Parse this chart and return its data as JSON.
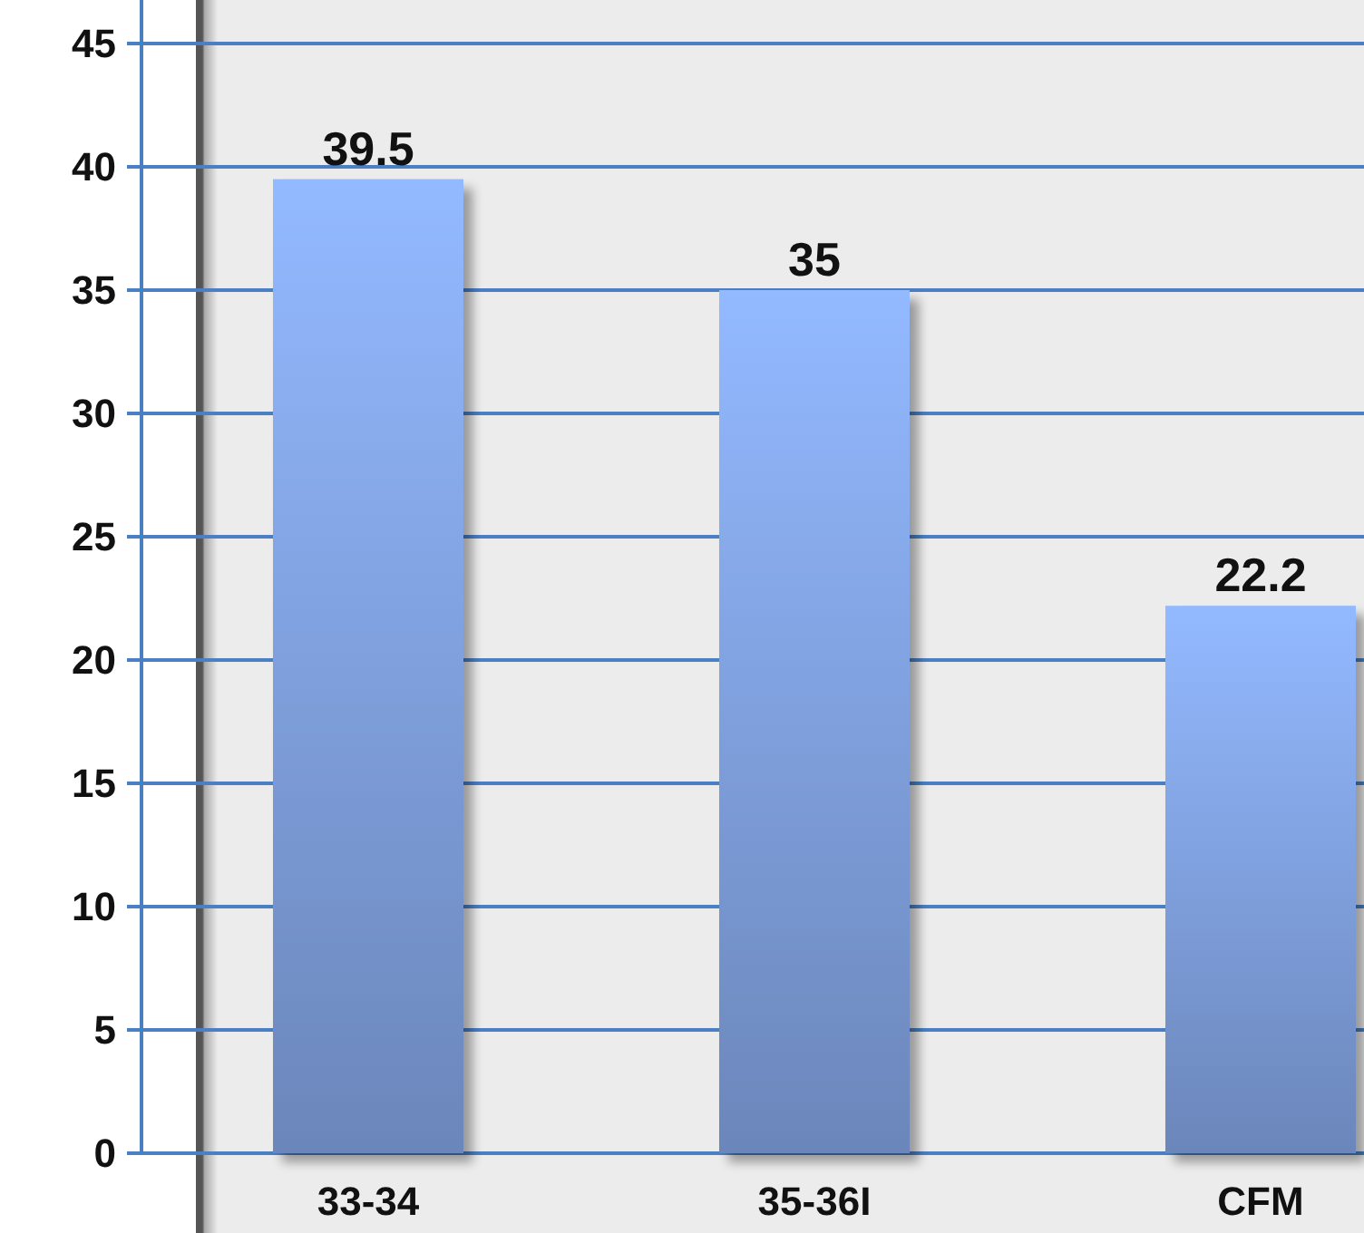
{
  "chart_data": {
    "type": "bar",
    "categories": [
      "33-34",
      "35-36I",
      "CFM"
    ],
    "values": [
      39.5,
      35,
      22.2
    ],
    "color": "#7b9bd6",
    "ylim": [
      0,
      45
    ],
    "yticks": [
      0,
      5,
      10,
      15,
      20,
      25,
      30,
      35,
      40,
      45
    ],
    "grid": "y",
    "data_labels": true
  }
}
